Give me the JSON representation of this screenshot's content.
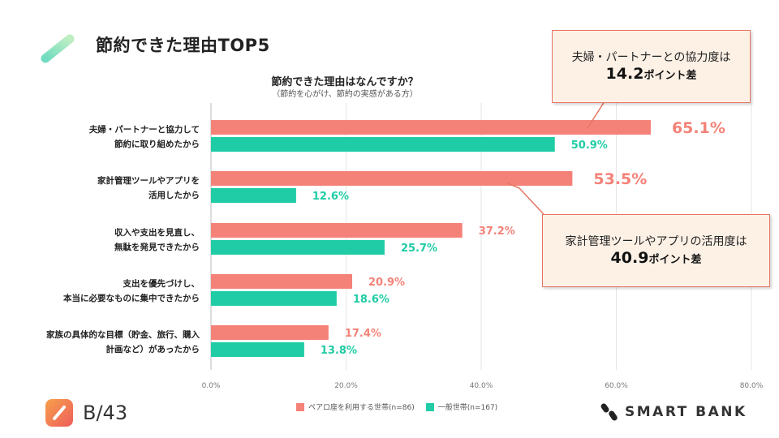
{
  "header": {
    "title": "節約できた理由TOP5"
  },
  "chart_data": {
    "type": "bar",
    "orientation": "horizontal",
    "title": "節約できた理由はなんですか？",
    "subtitle": "（節約を心がけ、節約の実感がある方）",
    "categories": [
      [
        "夫婦・パートナーと協力して",
        "節約に取り組めたから"
      ],
      [
        "家計管理ツールやアプリを",
        "活用したから"
      ],
      [
        "収入や支出を見直し、",
        "無駄を発見できたから"
      ],
      [
        "支出を優先づけし、",
        "本当に必要なものに集中できたから"
      ],
      [
        "家族の具体的な目標（貯金、旅行、購入",
        "計画など）があったから"
      ]
    ],
    "series": [
      {
        "name": "ペアロ座を利用する世帯(n=86)",
        "color": "#f48278",
        "values": [
          65.1,
          53.5,
          37.2,
          20.9,
          17.4
        ]
      },
      {
        "name": "一般世帯(n=167)",
        "color": "#1fcca5",
        "values": [
          50.9,
          12.6,
          25.7,
          18.6,
          13.8
        ]
      }
    ],
    "xlim": [
      0,
      80
    ],
    "xticks": [
      "0.0%",
      "20.0%",
      "40.0%",
      "60.0%",
      "80.0%"
    ],
    "value_labels": [
      [
        "65.1%",
        "50.9%"
      ],
      [
        "53.5%",
        "12.6%"
      ],
      [
        "37.2%",
        "25.7%"
      ],
      [
        "20.9%",
        "18.6%"
      ],
      [
        "17.4%",
        "13.8%"
      ]
    ],
    "grid": true
  },
  "callouts": [
    {
      "line1": "夫婦・パートナーとの協力度は",
      "big": "14.2",
      "small": "ポイント差"
    },
    {
      "line1": "家計管理ツールやアプリの活用度は",
      "big": "40.9",
      "small": "ポイント差"
    }
  ],
  "footer": {
    "page_label": "B/43",
    "brand": "SMART BANK"
  },
  "colors": {
    "pair": "#f48278",
    "general": "#1fcca5",
    "callout_border": "#e87564",
    "callout_bg": "#fdf1e6"
  }
}
